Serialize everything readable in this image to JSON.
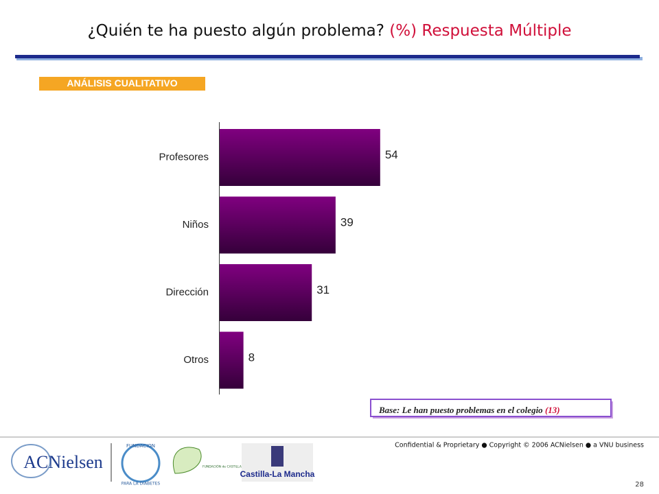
{
  "header": {
    "title": "¿Quién te ha puesto algún problema?",
    "title_note": "(%) Respuesta Múltiple",
    "badge": "ANÁLISIS CUALITATIVO"
  },
  "chart_data": {
    "type": "hbar",
    "categories": [
      "Profesores",
      "Niños",
      "Dirección",
      "Otros"
    ],
    "values": [
      54,
      39,
      31,
      8
    ],
    "color": "#800080",
    "xlim": [
      0,
      100
    ]
  },
  "footnote": {
    "text": "Base: Le han puesto problemas en el colegio",
    "count": "(13)"
  },
  "footer": {
    "confidential": "Confidential & Proprietary ● Copyright © 2006 ACNielsen ● a VNU business",
    "page": "28",
    "logos": [
      "ACNielsen",
      "FUNDACION",
      "PARA LA DIABETES",
      "FUNDACIÓN de CASTILLA-LA MANCHA para la DIABETES",
      "Castilla-La Mancha"
    ]
  }
}
